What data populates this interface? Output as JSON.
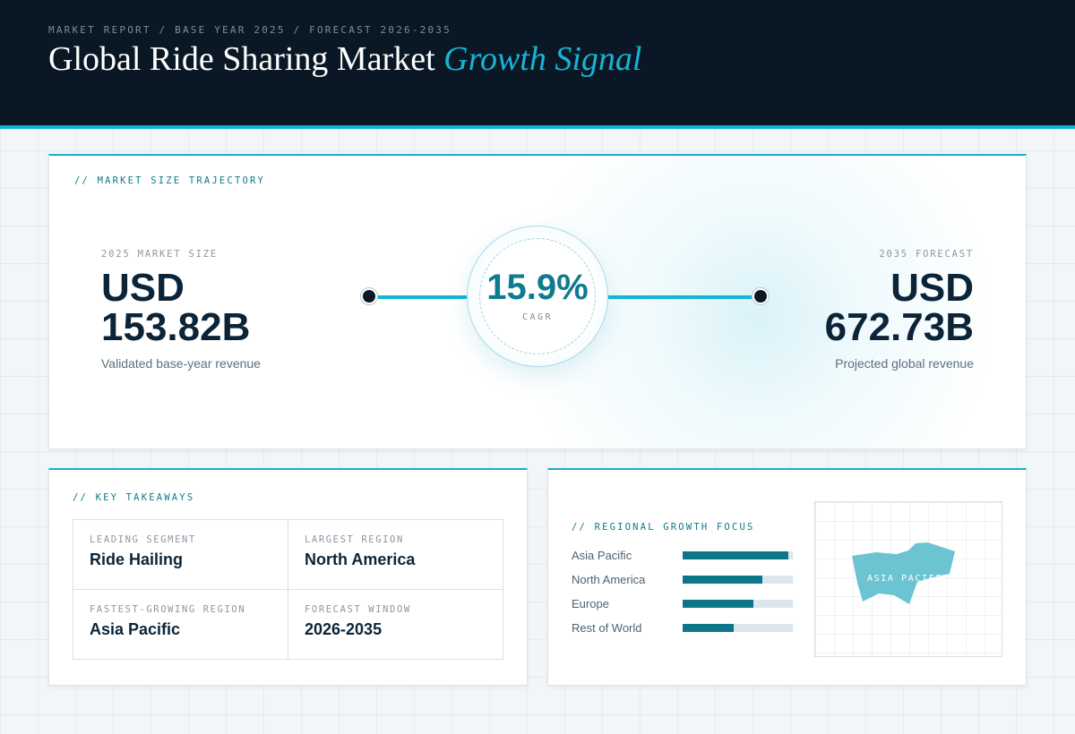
{
  "header": {
    "eyebrow": "MARKET REPORT / BASE YEAR 2025 / FORECAST 2026-2035",
    "title_main": "Global Ride Sharing Market",
    "title_accent": "Growth Signal"
  },
  "trajectory": {
    "label": "// MARKET SIZE TRAJECTORY",
    "start": {
      "label": "2025 MARKET SIZE",
      "value_line1": "USD",
      "value_line2": "153.82B",
      "desc": "Validated base-year revenue"
    },
    "end": {
      "label": "2035 FORECAST",
      "value_line1": "USD",
      "value_line2": "672.73B",
      "desc": "Projected global revenue"
    },
    "cagr": {
      "value": "15.9%",
      "label": "CAGR"
    }
  },
  "takeaways": {
    "label": "// KEY TAKEAWAYS",
    "items": [
      {
        "key": "LEADING SEGMENT",
        "value": "Ride Hailing"
      },
      {
        "key": "LARGEST REGION",
        "value": "North America"
      },
      {
        "key": "FASTEST-GROWING REGION",
        "value": "Asia Pacific"
      },
      {
        "key": "FORECAST WINDOW",
        "value": "2026-2035"
      }
    ]
  },
  "regional": {
    "label": "// REGIONAL GROWTH FOCUS",
    "rows": [
      {
        "name": "Asia Pacific",
        "level": 0.96
      },
      {
        "name": "North America",
        "level": 0.72
      },
      {
        "name": "Europe",
        "level": 0.64
      },
      {
        "name": "Rest of World",
        "level": 0.46
      }
    ],
    "map_label": "ASIA PACIFIC"
  },
  "colors": {
    "header_bg": "#0a1826",
    "accent": "#19b3d3",
    "bar_fill": "#0d7787",
    "map_shape": "#6cc4d2"
  }
}
